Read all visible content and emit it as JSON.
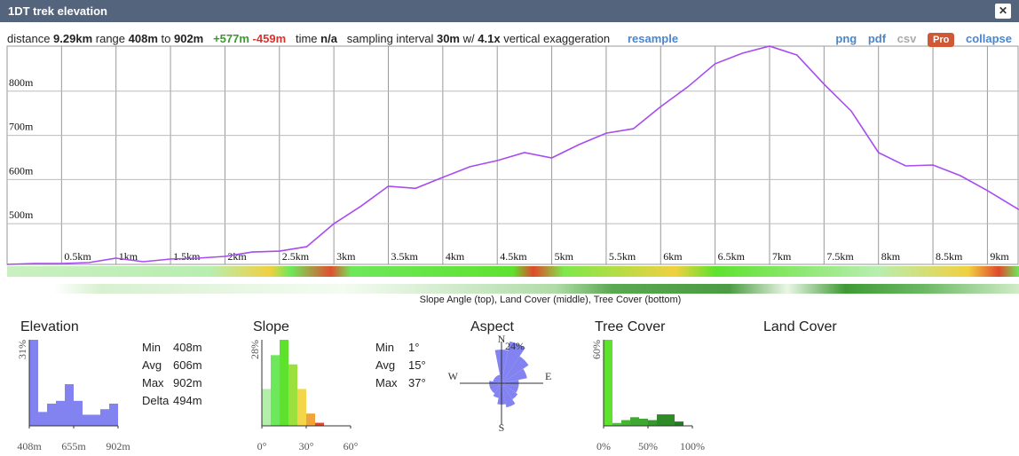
{
  "header": {
    "title": "1DT trek elevation",
    "close": "✕"
  },
  "toolbar": {
    "distance_label": "distance",
    "distance": "9.29km",
    "range_label": "range",
    "range_min": "408m",
    "to": "to",
    "range_max": "902m",
    "gain": "+577m",
    "loss": "-459m",
    "time_label": "time",
    "time": "n/a",
    "sampling_label": "sampling interval",
    "sampling": "30m",
    "w": "w/",
    "exaggeration": "4.1x",
    "exaggeration_label": "vertical exaggeration",
    "resample": "resample",
    "actions": [
      "png",
      "pdf",
      "csv",
      "Pro",
      "collapse"
    ]
  },
  "strip_caption": "Slope Angle (top), Land Cover (middle), Tree Cover (bottom)",
  "land_cover_title": "Land Cover",
  "elevation_stats": [
    [
      "Min",
      "408m"
    ],
    [
      "Avg",
      "606m"
    ],
    [
      "Max",
      "902m"
    ],
    [
      "Delta",
      "494m"
    ]
  ],
  "slope_stats": [
    [
      "Min",
      "1°"
    ],
    [
      "Avg",
      "15°"
    ],
    [
      "Max",
      "37°"
    ]
  ],
  "chart_data": [
    {
      "type": "line",
      "color": "#a64cf0",
      "grid": true,
      "x": [
        0,
        0.25,
        0.5,
        0.75,
        1,
        1.25,
        1.5,
        1.75,
        2,
        2.25,
        2.5,
        2.75,
        3,
        3.25,
        3.5,
        3.75,
        4,
        4.25,
        4.5,
        4.75,
        5,
        5.25,
        5.5,
        5.75,
        6,
        6.25,
        6.5,
        6.75,
        7,
        7.25,
        7.5,
        7.75,
        8,
        8.25,
        8.5,
        8.75,
        9,
        9.29
      ],
      "values": [
        408,
        410,
        410,
        412,
        422,
        414,
        420,
        422,
        426,
        436,
        438,
        448,
        500,
        540,
        585,
        580,
        605,
        629,
        643,
        661,
        649,
        679,
        705,
        715,
        765,
        810,
        862,
        886,
        902,
        882,
        816,
        755,
        661,
        631,
        633,
        609,
        575,
        532
      ],
      "xlim": [
        0,
        9.29
      ],
      "ylim": [
        408,
        902
      ],
      "xticks": [
        {
          "value": 0.5,
          "label": "0.5km"
        },
        {
          "value": 1,
          "label": "1km"
        },
        {
          "value": 1.5,
          "label": "1.5km"
        },
        {
          "value": 2,
          "label": "2km"
        },
        {
          "value": 2.5,
          "label": "2.5km"
        },
        {
          "value": 3,
          "label": "3km"
        },
        {
          "value": 3.5,
          "label": "3.5km"
        },
        {
          "value": 4,
          "label": "4km"
        },
        {
          "value": 4.5,
          "label": "4.5km"
        },
        {
          "value": 5,
          "label": "5km"
        },
        {
          "value": 5.5,
          "label": "5.5km"
        },
        {
          "value": 6,
          "label": "6km"
        },
        {
          "value": 6.5,
          "label": "6.5km"
        },
        {
          "value": 7,
          "label": "7km"
        },
        {
          "value": 7.5,
          "label": "7.5km"
        },
        {
          "value": 8,
          "label": "8km"
        },
        {
          "value": 8.5,
          "label": "8.5km"
        },
        {
          "value": 9,
          "label": "9km"
        }
      ],
      "yticks": [
        {
          "value": 500,
          "label": "500m"
        },
        {
          "value": 600,
          "label": "600m"
        },
        {
          "value": 700,
          "label": "700m"
        },
        {
          "value": 800,
          "label": "800m"
        }
      ]
    },
    {
      "type": "histogram",
      "title": "Elevation",
      "color": "#8282f0",
      "bins": [
        408,
        457.4,
        506.8,
        556.2,
        605.6,
        655,
        704.4,
        753.8,
        803.2,
        852.6,
        902
      ],
      "values": [
        31,
        5,
        8,
        9,
        15,
        9,
        4,
        4,
        6,
        8
      ],
      "xlim": [
        408,
        902
      ],
      "ylim": [
        0,
        31
      ],
      "xticks": [
        {
          "value": 408,
          "label": "408m"
        },
        {
          "value": 655,
          "label": "655m"
        },
        {
          "value": 902,
          "label": "902m"
        }
      ],
      "yticks": [
        {
          "value": 31,
          "label": "31%"
        }
      ]
    },
    {
      "type": "histogram",
      "title": "Slope",
      "bins": [
        0,
        6,
        12,
        18,
        24,
        30,
        36,
        42
      ],
      "values": [
        12,
        23,
        28,
        20,
        12,
        4,
        1
      ],
      "colors": [
        "#b3eeaa",
        "#6de85a",
        "#5ee22e",
        "#9be03c",
        "#f3d64a",
        "#f2a33a",
        "#e2462e"
      ],
      "xlim": [
        0,
        60
      ],
      "ylim": [
        0,
        28
      ],
      "xticks": [
        {
          "value": 0,
          "label": "0°"
        },
        {
          "value": 30,
          "label": "30°"
        },
        {
          "value": 60,
          "label": "60°"
        }
      ],
      "yticks": [
        {
          "value": 28,
          "label": "28%"
        }
      ]
    },
    {
      "type": "polar",
      "title": "Aspect",
      "color": "#8282f0",
      "categories": [
        "N",
        null,
        null,
        null,
        "E",
        null,
        null,
        null,
        "S",
        null,
        null,
        null,
        "W",
        null,
        null,
        null
      ],
      "values": [
        15,
        24,
        14,
        9,
        4,
        4,
        5,
        8,
        6,
        3,
        2,
        2,
        2,
        1,
        1,
        1
      ],
      "rlim": [
        0,
        24
      ],
      "rticks": [
        {
          "value": 24,
          "label": "24%"
        }
      ]
    },
    {
      "type": "histogram",
      "title": "Tree Cover",
      "bins": [
        0,
        10,
        20,
        30,
        40,
        50,
        60,
        70,
        80,
        90,
        100
      ],
      "values": [
        60,
        2,
        4,
        6,
        5,
        4,
        8,
        8,
        3,
        0
      ],
      "colors": [
        "#5ee22e",
        "#4ec43a",
        "#46b536",
        "#3fa832",
        "#3fa832",
        "#35982c",
        "#2e8b28",
        "#2e8b28",
        "#237a22",
        "#1d6b1d"
      ],
      "xlim": [
        0,
        100
      ],
      "ylim": [
        0,
        60
      ],
      "xticks": [
        {
          "value": 0,
          "label": "0%"
        },
        {
          "value": 50,
          "label": "50%"
        },
        {
          "value": 100,
          "label": "100%"
        }
      ],
      "yticks": [
        {
          "value": 60,
          "label": "60%"
        }
      ]
    }
  ]
}
